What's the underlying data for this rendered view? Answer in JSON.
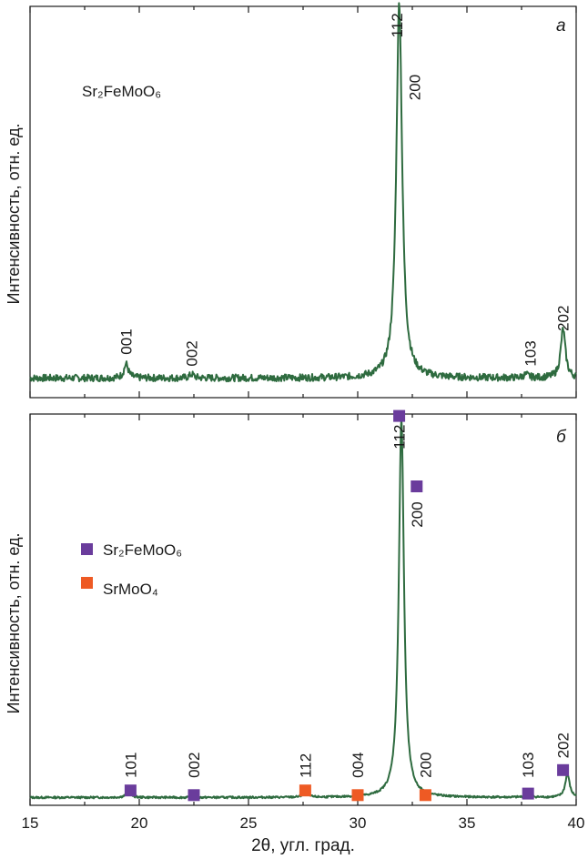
{
  "colors": {
    "trace": "#2e6b3f",
    "sr2femoo6_marker": "#6a3c9c",
    "srmoo4_marker": "#ee5a24",
    "axis": "#1a1a1a"
  },
  "xlabel": "2θ, угл. град.",
  "xlim": [
    15,
    40
  ],
  "x_ticks": [
    15,
    20,
    25,
    30,
    35,
    40
  ],
  "chart_data": [
    {
      "type": "line",
      "panel_label": "а",
      "ylabel": "Интенсивность, отн. ед.",
      "xlim": [
        15,
        40
      ],
      "ylim": [
        0,
        100
      ],
      "compound_label": "Sr₂FeMoO₆",
      "baseline": 5,
      "peaks": [
        {
          "x": 19.4,
          "height": 3.6,
          "width": 0.12
        },
        {
          "x": 22.4,
          "height": 1.0,
          "width": 0.12
        },
        {
          "x": 31.9,
          "height": 96.0,
          "width": 0.16
        },
        {
          "x": 37.7,
          "height": 0.8,
          "width": 0.15
        },
        {
          "x": 39.4,
          "height": 12.5,
          "width": 0.13
        }
      ],
      "reflections": [
        {
          "label": "001",
          "x": 19.4,
          "label_y": 11
        },
        {
          "label": "002",
          "x": 22.4,
          "label_y": 8
        },
        {
          "label": "112",
          "x": 31.8,
          "label_y": 92
        },
        {
          "label": "200",
          "x": 32.6,
          "label_y": 76
        },
        {
          "label": "103",
          "x": 37.9,
          "label_y": 8
        },
        {
          "label": "202",
          "x": 39.4,
          "label_y": 17
        }
      ]
    },
    {
      "type": "line",
      "panel_label": "б",
      "ylabel": "Интенсивность, отн. ед.",
      "xlim": [
        15,
        40
      ],
      "ylim": [
        0,
        100
      ],
      "baseline": 2,
      "legend": [
        {
          "name": "Sr₂FeMoO₆",
          "marker": "square",
          "color": "#6a3c9c"
        },
        {
          "name": "SrMoO₄",
          "marker": "square",
          "color": "#ee5a24"
        }
      ],
      "peaks": [
        {
          "x": 19.5,
          "height": 1.6,
          "width": 0.12
        },
        {
          "x": 27.6,
          "height": 1.4,
          "width": 0.12
        },
        {
          "x": 32.0,
          "height": 97.0,
          "width": 0.14
        },
        {
          "x": 37.8,
          "height": 0.7,
          "width": 0.15
        },
        {
          "x": 39.6,
          "height": 6.0,
          "width": 0.12
        }
      ],
      "reflections": [
        {
          "label": "101",
          "x": 19.6,
          "label_y": 7,
          "phase": "Sr₂FeMoO₆",
          "marker_y": 3.8
        },
        {
          "label": "002",
          "x": 22.5,
          "label_y": 7,
          "phase": "Sr₂FeMoO₆",
          "marker_y": 2.6
        },
        {
          "label": "112",
          "x": 27.6,
          "label_y": 7,
          "phase": "SrMoO₄",
          "marker_y": 3.8
        },
        {
          "label": "004",
          "x": 30.0,
          "label_y": 7,
          "phase": "SrMoO₄",
          "marker_y": 2.6
        },
        {
          "label": "112",
          "x": 31.9,
          "label_y": 91,
          "phase": "Sr₂FeMoO₆",
          "marker_y": 99.5
        },
        {
          "label": "200",
          "x": 32.7,
          "label_y": 71,
          "phase": "Sr₂FeMoO₆",
          "marker_y": 81.5
        },
        {
          "label": "200",
          "x": 33.1,
          "label_y": 7,
          "phase": "SrMoO₄",
          "marker_y": 2.6
        },
        {
          "label": "103",
          "x": 37.8,
          "label_y": 7,
          "phase": "Sr₂FeMoO₆",
          "marker_y": 3.0
        },
        {
          "label": "202",
          "x": 39.4,
          "label_y": 12,
          "phase": "Sr₂FeMoO₆",
          "marker_y": 9.0
        }
      ]
    }
  ]
}
